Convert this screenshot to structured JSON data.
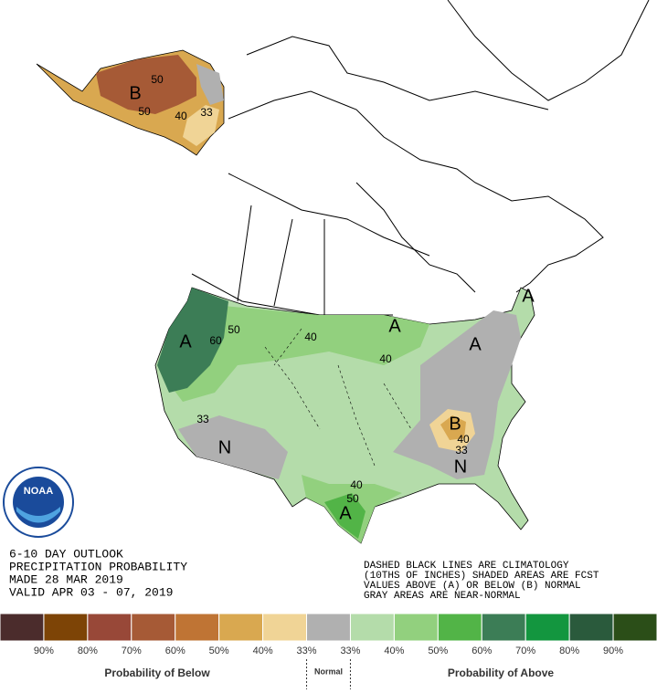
{
  "header": {
    "lines": [
      "6-10 DAY OUTLOOK",
      "PRECIPITATION PROBABILITY",
      "MADE  28 MAR 2019",
      "VALID  APR 03 - 07, 2019"
    ]
  },
  "notes": {
    "lines": [
      "DASHED BLACK LINES ARE CLIMATOLOGY",
      "(10THS OF INCHES) SHADED AREAS ARE FCST",
      "VALUES ABOVE (A) OR BELOW (B) NORMAL",
      "GRAY AREAS ARE NEAR-NORMAL"
    ]
  },
  "logo": {
    "text": "NOAA"
  },
  "map_labels": [
    "B",
    "50",
    "50",
    "40",
    "33",
    "A",
    "60",
    "50",
    "40",
    "A",
    "40",
    "A",
    "A",
    "B",
    "40",
    "33",
    "N",
    "33",
    "N",
    "40",
    "50",
    "A"
  ],
  "legend": {
    "colors": [
      "#4b2c2c",
      "#7d4406",
      "#984838",
      "#a65a36",
      "#bf7434",
      "#d9a850",
      "#f0d496",
      "#b0b0b0",
      "#b4dcaa",
      "#92d07e",
      "#52b447",
      "#3c7d56",
      "#13963f",
      "#2a5a3c",
      "#2b4e18"
    ],
    "labels": [
      "90%",
      "80%",
      "70%",
      "60%",
      "50%",
      "40%",
      "33%",
      "33%",
      "40%",
      "50%",
      "60%",
      "70%",
      "80%",
      "90%"
    ],
    "below": "Probability of Below",
    "normal": "Normal",
    "above": "Probability of Above"
  }
}
